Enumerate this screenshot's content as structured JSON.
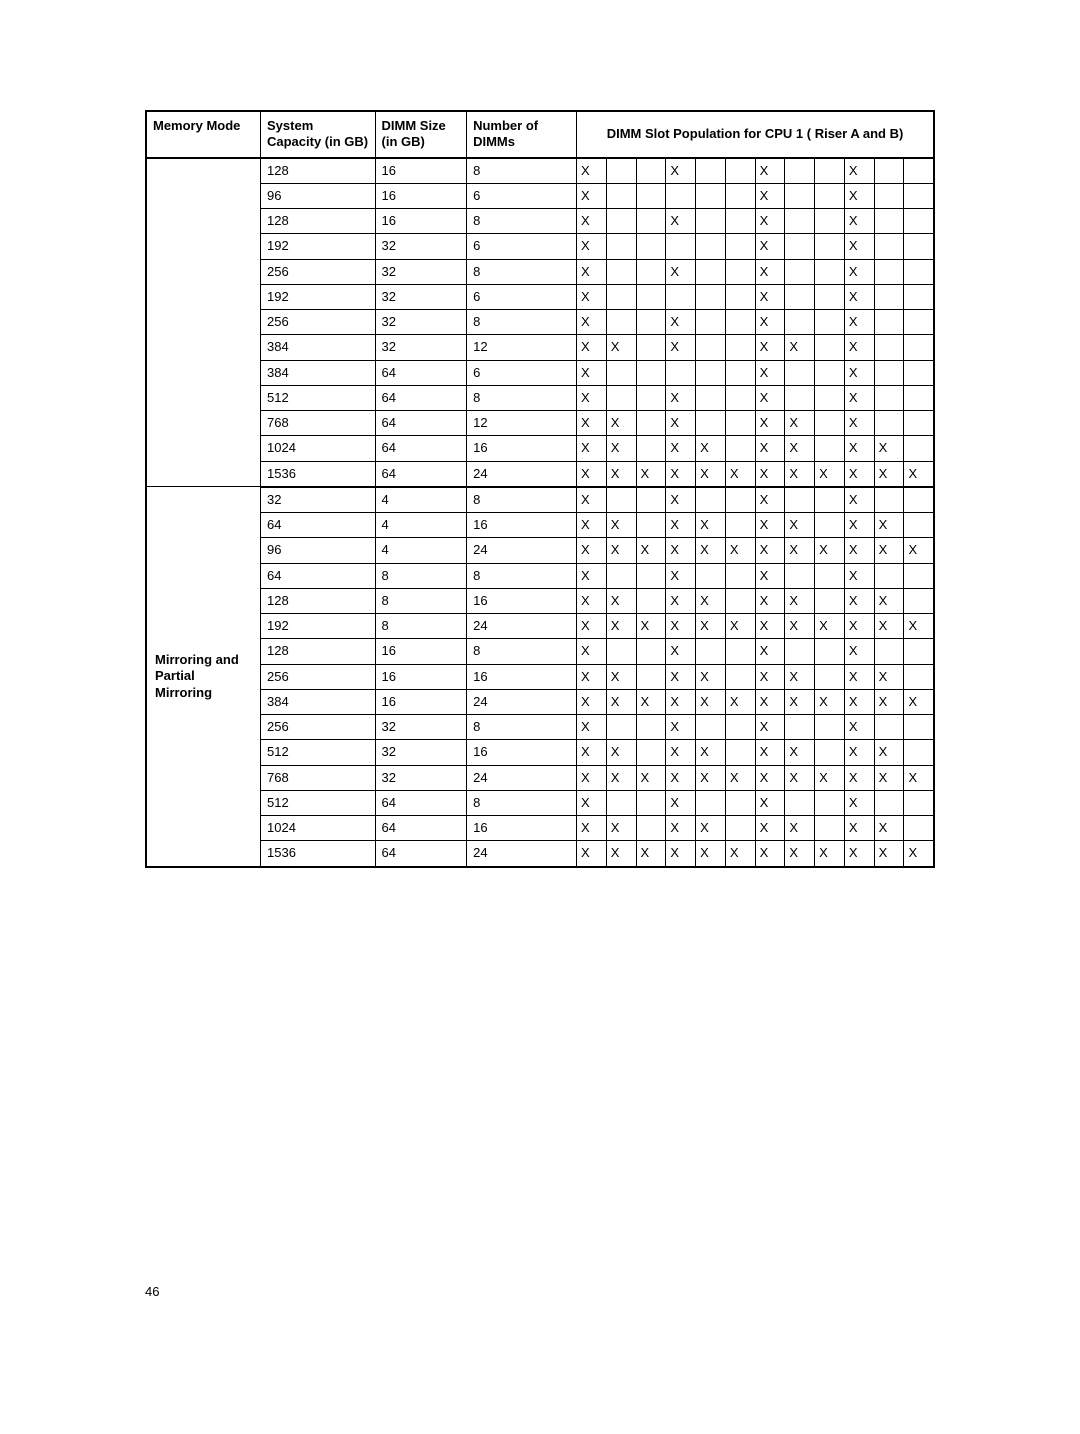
{
  "page_number": "46",
  "headers": {
    "memory_mode": "Memory Mode",
    "system_capacity": "System Capacity (in GB)",
    "dimm_size": "DIMM Size (in GB)",
    "number_dimms": "Number of DIMMs",
    "slot_population": "DIMM Slot Population for CPU 1 ( Riser A and B)"
  },
  "memory_modes": {
    "mode2": "Mirroring and Partial Mirroring"
  },
  "mark": "X",
  "rows": [
    {
      "mode": "blank",
      "cap": "128",
      "size": "16",
      "num": "8",
      "slots": [
        1,
        0,
        0,
        1,
        0,
        0,
        1,
        0,
        0,
        1,
        0,
        0
      ]
    },
    {
      "mode": "blank",
      "cap": "96",
      "size": "16",
      "num": "6",
      "slots": [
        1,
        0,
        0,
        0,
        0,
        0,
        1,
        0,
        0,
        1,
        0,
        0
      ]
    },
    {
      "mode": "blank",
      "cap": "128",
      "size": "16",
      "num": "8",
      "slots": [
        1,
        0,
        0,
        1,
        0,
        0,
        1,
        0,
        0,
        1,
        0,
        0
      ]
    },
    {
      "mode": "blank",
      "cap": "192",
      "size": "32",
      "num": "6",
      "slots": [
        1,
        0,
        0,
        0,
        0,
        0,
        1,
        0,
        0,
        1,
        0,
        0
      ]
    },
    {
      "mode": "blank",
      "cap": "256",
      "size": "32",
      "num": "8",
      "slots": [
        1,
        0,
        0,
        1,
        0,
        0,
        1,
        0,
        0,
        1,
        0,
        0
      ]
    },
    {
      "mode": "blank",
      "cap": "192",
      "size": "32",
      "num": "6",
      "slots": [
        1,
        0,
        0,
        0,
        0,
        0,
        1,
        0,
        0,
        1,
        0,
        0
      ]
    },
    {
      "mode": "blank",
      "cap": "256",
      "size": "32",
      "num": "8",
      "slots": [
        1,
        0,
        0,
        1,
        0,
        0,
        1,
        0,
        0,
        1,
        0,
        0
      ]
    },
    {
      "mode": "blank",
      "cap": "384",
      "size": "32",
      "num": "12",
      "slots": [
        1,
        1,
        0,
        1,
        0,
        0,
        1,
        1,
        0,
        1,
        0,
        0
      ]
    },
    {
      "mode": "blank",
      "cap": "384",
      "size": "64",
      "num": "6",
      "slots": [
        1,
        0,
        0,
        0,
        0,
        0,
        1,
        0,
        0,
        1,
        0,
        0
      ]
    },
    {
      "mode": "blank",
      "cap": "512",
      "size": "64",
      "num": "8",
      "slots": [
        1,
        0,
        0,
        1,
        0,
        0,
        1,
        0,
        0,
        1,
        0,
        0
      ]
    },
    {
      "mode": "blank",
      "cap": "768",
      "size": "64",
      "num": "12",
      "slots": [
        1,
        1,
        0,
        1,
        0,
        0,
        1,
        1,
        0,
        1,
        0,
        0
      ]
    },
    {
      "mode": "blank",
      "cap": "1024",
      "size": "64",
      "num": "16",
      "slots": [
        1,
        1,
        0,
        1,
        1,
        0,
        1,
        1,
        0,
        1,
        1,
        0
      ]
    },
    {
      "mode": "blank_last",
      "cap": "1536",
      "size": "64",
      "num": "24",
      "slots": [
        1,
        1,
        1,
        1,
        1,
        1,
        1,
        1,
        1,
        1,
        1,
        1
      ]
    },
    {
      "mode": "mode2_first",
      "cap": "32",
      "size": "4",
      "num": "8",
      "slots": [
        1,
        0,
        0,
        1,
        0,
        0,
        1,
        0,
        0,
        1,
        0,
        0
      ]
    },
    {
      "mode": "mode2",
      "cap": "64",
      "size": "4",
      "num": "16",
      "slots": [
        1,
        1,
        0,
        1,
        1,
        0,
        1,
        1,
        0,
        1,
        1,
        0
      ]
    },
    {
      "mode": "mode2",
      "cap": "96",
      "size": "4",
      "num": "24",
      "slots": [
        1,
        1,
        1,
        1,
        1,
        1,
        1,
        1,
        1,
        1,
        1,
        1
      ]
    },
    {
      "mode": "mode2",
      "cap": "64",
      "size": "8",
      "num": "8",
      "slots": [
        1,
        0,
        0,
        1,
        0,
        0,
        1,
        0,
        0,
        1,
        0,
        0
      ]
    },
    {
      "mode": "mode2",
      "cap": "128",
      "size": "8",
      "num": "16",
      "slots": [
        1,
        1,
        0,
        1,
        1,
        0,
        1,
        1,
        0,
        1,
        1,
        0
      ]
    },
    {
      "mode": "mode2",
      "cap": "192",
      "size": "8",
      "num": "24",
      "slots": [
        1,
        1,
        1,
        1,
        1,
        1,
        1,
        1,
        1,
        1,
        1,
        1
      ]
    },
    {
      "mode": "mode2",
      "cap": "128",
      "size": "16",
      "num": "8",
      "slots": [
        1,
        0,
        0,
        1,
        0,
        0,
        1,
        0,
        0,
        1,
        0,
        0
      ]
    },
    {
      "mode": "mode2",
      "cap": "256",
      "size": "16",
      "num": "16",
      "slots": [
        1,
        1,
        0,
        1,
        1,
        0,
        1,
        1,
        0,
        1,
        1,
        0
      ]
    },
    {
      "mode": "mode2",
      "cap": "384",
      "size": "16",
      "num": "24",
      "slots": [
        1,
        1,
        1,
        1,
        1,
        1,
        1,
        1,
        1,
        1,
        1,
        1
      ]
    },
    {
      "mode": "mode2",
      "cap": "256",
      "size": "32",
      "num": "8",
      "slots": [
        1,
        0,
        0,
        1,
        0,
        0,
        1,
        0,
        0,
        1,
        0,
        0
      ]
    },
    {
      "mode": "mode2",
      "cap": "512",
      "size": "32",
      "num": "16",
      "slots": [
        1,
        1,
        0,
        1,
        1,
        0,
        1,
        1,
        0,
        1,
        1,
        0
      ]
    },
    {
      "mode": "mode2",
      "cap": "768",
      "size": "32",
      "num": "24",
      "slots": [
        1,
        1,
        1,
        1,
        1,
        1,
        1,
        1,
        1,
        1,
        1,
        1
      ]
    },
    {
      "mode": "mode2",
      "cap": "512",
      "size": "64",
      "num": "8",
      "slots": [
        1,
        0,
        0,
        1,
        0,
        0,
        1,
        0,
        0,
        1,
        0,
        0
      ]
    },
    {
      "mode": "mode2",
      "cap": "1024",
      "size": "64",
      "num": "16",
      "slots": [
        1,
        1,
        0,
        1,
        1,
        0,
        1,
        1,
        0,
        1,
        1,
        0
      ]
    },
    {
      "mode": "mode2_last",
      "cap": "1536",
      "size": "64",
      "num": "24",
      "slots": [
        1,
        1,
        1,
        1,
        1,
        1,
        1,
        1,
        1,
        1,
        1,
        1
      ]
    }
  ],
  "col_widths": {
    "mode": 100,
    "cap": 100,
    "size": 80,
    "num": 95,
    "slot": 26
  },
  "colors": {
    "border": "#000000",
    "text": "#000000",
    "bg": "#ffffff"
  },
  "font_sizes": {
    "cell": 13,
    "page_num": 13
  }
}
